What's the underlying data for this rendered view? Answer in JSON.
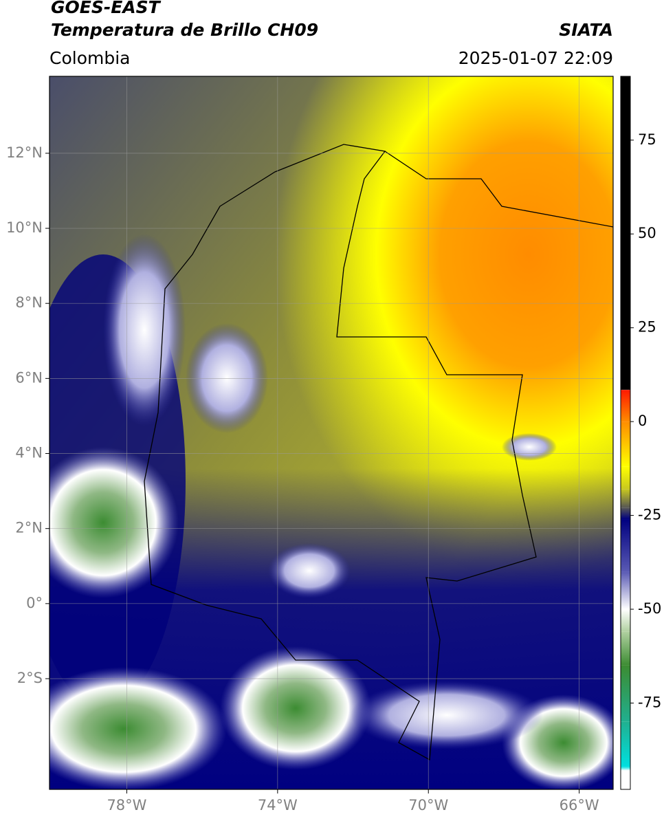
{
  "header": {
    "title": "GOES-EAST",
    "subtitle": "Temperatura de Brillo CH09",
    "region": "Colombia",
    "source": "SIATA",
    "datetime": "2025-01-07 22:09"
  },
  "map": {
    "xlim": [
      -80.05,
      -65.1
    ],
    "ylim": [
      -4.95,
      14.05
    ],
    "xticks": [
      {
        "value": -78,
        "label": "78°W"
      },
      {
        "value": -74,
        "label": "74°W"
      },
      {
        "value": -70,
        "label": "70°W"
      },
      {
        "value": -66,
        "label": "66°W"
      }
    ],
    "yticks": [
      {
        "value": -2,
        "label": "2°S"
      },
      {
        "value": 0,
        "label": "0°"
      },
      {
        "value": 2,
        "label": "2°N"
      },
      {
        "value": 4,
        "label": "4°N"
      },
      {
        "value": 6,
        "label": "6°N"
      },
      {
        "value": 8,
        "label": "8°N"
      },
      {
        "value": 10,
        "label": "10°N"
      },
      {
        "value": 12,
        "label": "12°N"
      }
    ],
    "grid": true
  },
  "colorbar": {
    "ylim": [
      -98,
      92
    ],
    "yticks": [
      75,
      50,
      25,
      0,
      -25,
      -50,
      -75
    ],
    "stops": [
      {
        "value": 92,
        "color": "#000000"
      },
      {
        "value": 8.5,
        "color": "#000000"
      },
      {
        "value": 8.4,
        "color": "#ff1a00"
      },
      {
        "value": 0,
        "color": "#ff8c00"
      },
      {
        "value": -12,
        "color": "#ffff00"
      },
      {
        "value": -18,
        "color": "#c8c820"
      },
      {
        "value": -23,
        "color": "#555555"
      },
      {
        "value": -26,
        "color": "#000080"
      },
      {
        "value": -40,
        "color": "#5a5ab4"
      },
      {
        "value": -50,
        "color": "#ffffff"
      },
      {
        "value": -56,
        "color": "#b0d0a0"
      },
      {
        "value": -65,
        "color": "#3c8c32"
      },
      {
        "value": -80,
        "color": "#20b090"
      },
      {
        "value": -92,
        "color": "#00e0e0"
      },
      {
        "value": -93,
        "color": "#ffffff"
      },
      {
        "value": -98,
        "color": "#ffffff"
      }
    ]
  }
}
